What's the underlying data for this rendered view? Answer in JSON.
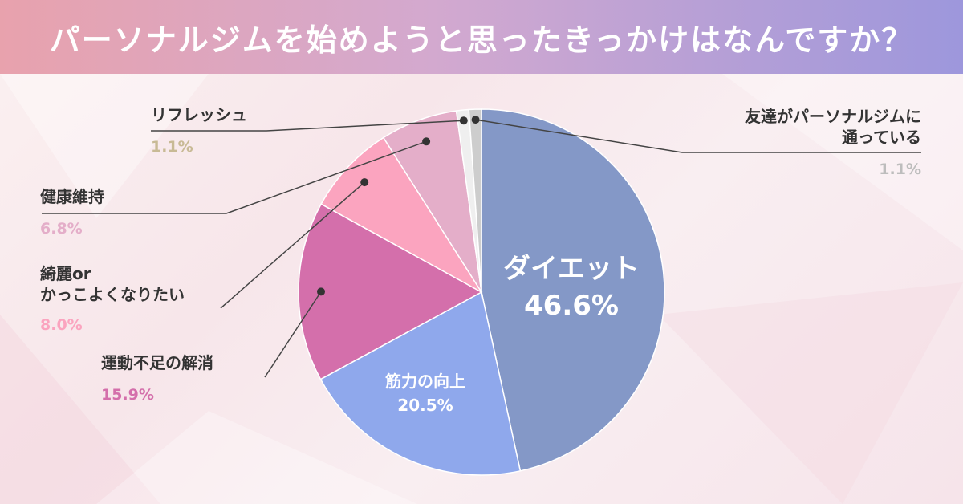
{
  "chart_data": {
    "type": "pie",
    "title": "パーソナルジムを始めようと思ったきっかけはなんですか？",
    "slices": [
      {
        "name": "ダイエット",
        "value": 46.6,
        "label": "46.6%",
        "color": "#8498c7"
      },
      {
        "name": "筋力の向上",
        "value": 20.5,
        "label": "20.5%",
        "color": "#8fa8ec"
      },
      {
        "name": "運動不足の解消",
        "value": 15.9,
        "label": "15.9%",
        "color": "#d46fab"
      },
      {
        "name": "綺麗or\nかっこよくなりたい",
        "value": 8.0,
        "label": "8.0%",
        "color": "#fba4bf"
      },
      {
        "name": "健康維持",
        "value": 6.8,
        "label": "6.8%",
        "color": "#e4aec9"
      },
      {
        "name": "リフレッシュ",
        "value": 1.1,
        "label": "1.1%",
        "color": "#efefef"
      },
      {
        "name": "友達がパーソナルジムに\n通っている",
        "value": 1.1,
        "label": "1.1%",
        "color": "#cdcdcd"
      }
    ],
    "label_colors": {
      "運動不足の解消": "#d46fab",
      "綺麗or\nかっこよくなりたい": "#fba4bf",
      "健康維持": "#e4aec9",
      "リフレッシュ": "#c8ba95",
      "友達がパーソナルジムに\n通っている": "#bdbdbd"
    }
  }
}
